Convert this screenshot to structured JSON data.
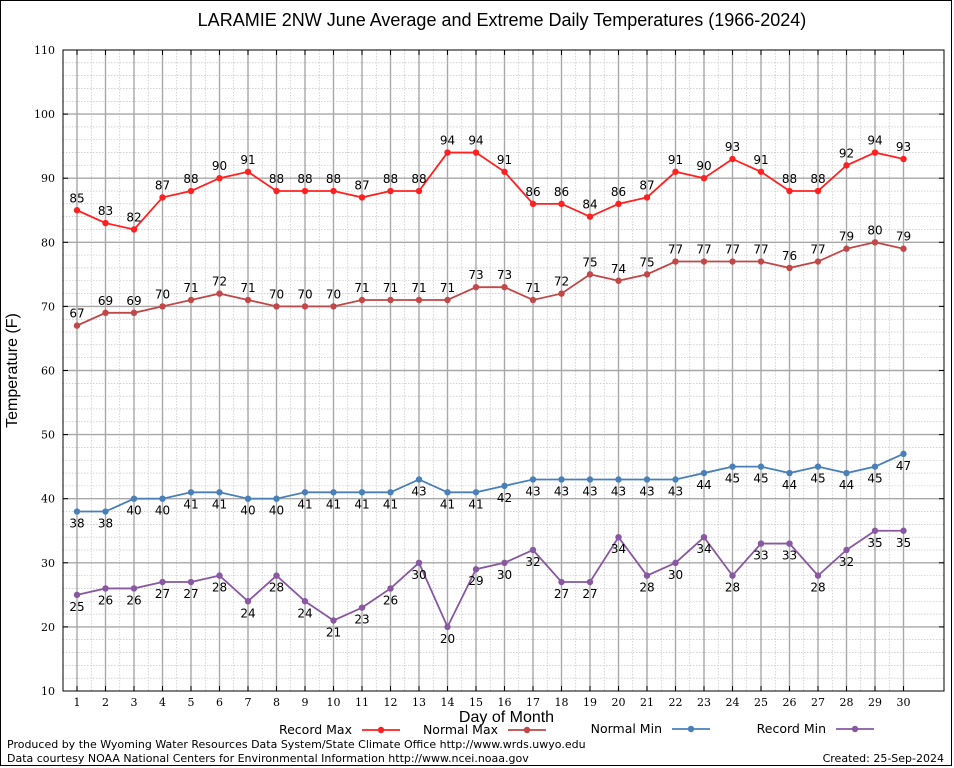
{
  "chart_data": {
    "type": "line",
    "title": "LARAMIE 2NW June Average and Extreme Daily Temperatures (1966-2024)",
    "xlabel": "Day of Month",
    "ylabel": "Temperature (F)",
    "xlim": [
      1,
      30
    ],
    "ylim": [
      10,
      110
    ],
    "yticks": [
      10,
      20,
      30,
      40,
      50,
      60,
      70,
      80,
      90,
      100,
      110
    ],
    "x": [
      1,
      2,
      3,
      4,
      5,
      6,
      7,
      8,
      9,
      10,
      11,
      12,
      13,
      14,
      15,
      16,
      17,
      18,
      19,
      20,
      21,
      22,
      23,
      24,
      25,
      26,
      27,
      28,
      29,
      30
    ],
    "grid": true,
    "legend_position": "bottom",
    "series": [
      {
        "name": "Record Max",
        "color": "#ff2020",
        "values": [
          85,
          83,
          82,
          87,
          88,
          90,
          91,
          88,
          88,
          88,
          87,
          88,
          88,
          94,
          94,
          91,
          86,
          86,
          84,
          86,
          87,
          91,
          90,
          93,
          91,
          88,
          88,
          92,
          94,
          93
        ],
        "labels_above": true
      },
      {
        "name": "Normal Max",
        "color": "#c04848",
        "values": [
          67,
          69,
          69,
          70,
          71,
          72,
          71,
          70,
          70,
          70,
          71,
          71,
          71,
          71,
          73,
          73,
          71,
          72,
          75,
          74,
          75,
          77,
          77,
          77,
          77,
          76,
          77,
          79,
          80,
          79
        ],
        "labels_above": true
      },
      {
        "name": "Normal Min",
        "color": "#4a80b8",
        "values": [
          38,
          38,
          40,
          40,
          41,
          41,
          40,
          40,
          41,
          41,
          41,
          41,
          43,
          41,
          41,
          42,
          43,
          43,
          43,
          43,
          43,
          43,
          44,
          45,
          45,
          44,
          45,
          44,
          45,
          47
        ],
        "labels_above": false
      },
      {
        "name": "Record Min",
        "color": "#8858a0",
        "values": [
          25,
          26,
          26,
          27,
          27,
          28,
          24,
          28,
          24,
          21,
          23,
          26,
          30,
          20,
          29,
          30,
          32,
          27,
          27,
          34,
          28,
          30,
          34,
          28,
          33,
          33,
          28,
          32,
          35,
          35
        ],
        "labels_above": false
      }
    ]
  },
  "footer": {
    "produced_by": "Produced by the Wyoming Water Resources Data System/State Climate Office http://www.wrds.uwyo.edu",
    "courtesy": "Data courtesy NOAA National Centers for Environmental Information http://www.ncei.noaa.gov",
    "created": "Created:  25-Sep-2024"
  }
}
